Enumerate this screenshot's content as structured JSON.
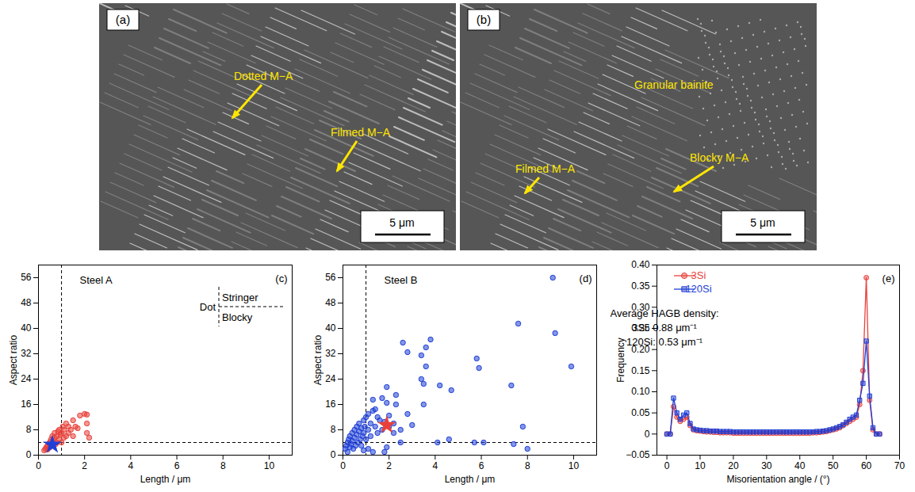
{
  "images": [
    {
      "label": "(a)",
      "annotations": [
        "Dotted M−A",
        "Filmed M−A"
      ],
      "scale_bar": "5 μm"
    },
    {
      "label": "(b)",
      "annotations": [
        "Granular bainite",
        "Filmed M−A",
        "Blocky M−A"
      ],
      "scale_bar": "5 μm"
    }
  ],
  "chart_data": [
    {
      "panel": "(c)",
      "type": "scatter",
      "title": "Steel A",
      "x_label": "Length / μm",
      "y_label": "Aspect ratio",
      "xlim": [
        0,
        11
      ],
      "ylim": [
        0,
        60
      ],
      "xticks": [
        0,
        2,
        4,
        6,
        8,
        10
      ],
      "yticks": [
        0,
        8,
        16,
        24,
        32,
        40,
        48,
        56
      ],
      "points": {
        "color": "#e8413a",
        "marker": "circle",
        "x": [
          0.25,
          0.3,
          0.35,
          0.4,
          0.4,
          0.45,
          0.5,
          0.5,
          0.55,
          0.6,
          0.6,
          0.65,
          0.7,
          0.7,
          0.75,
          0.8,
          0.8,
          0.85,
          0.9,
          0.9,
          0.95,
          1.0,
          1.0,
          1.05,
          1.1,
          1.1,
          1.2,
          1.2,
          1.3,
          1.3,
          1.4,
          1.5,
          1.5,
          1.6,
          1.7,
          1.8,
          2.0,
          2.1,
          2.1,
          2.2,
          2.1
        ],
        "y": [
          1.5,
          2,
          2.6,
          3,
          1.8,
          3.6,
          4.2,
          2.5,
          5,
          3,
          6,
          4.5,
          5.5,
          7,
          3.5,
          6,
          4,
          7.5,
          5,
          8,
          6.5,
          4,
          7,
          9,
          5.5,
          8,
          6,
          10,
          7,
          9,
          8,
          11,
          6,
          9,
          8.5,
          12.5,
          13,
          10,
          7,
          5.5,
          12.8
        ]
      },
      "mean": {
        "x": 0.6,
        "y": 3.3,
        "color": "#1f3fd6",
        "marker": "star"
      },
      "thresholds": {
        "length": 1,
        "aspect_ratio": 4
      },
      "inset_labels": [
        "Dot",
        "Stringer",
        "Blocky"
      ]
    },
    {
      "panel": "(d)",
      "type": "scatter",
      "title": "Steel B",
      "x_label": "Length / μm",
      "y_label": "Aspect ratio",
      "xlim": [
        0,
        11
      ],
      "ylim": [
        0,
        60
      ],
      "xticks": [
        0,
        2,
        4,
        6,
        8,
        10
      ],
      "yticks": [
        0,
        8,
        16,
        24,
        32,
        40,
        48,
        56
      ],
      "points": {
        "color": "#1f3fd6",
        "marker": "circle",
        "x": [
          9.1,
          7.6,
          9.2,
          3.8,
          2.6,
          3.6,
          3.4,
          5.8,
          5.9,
          2.8,
          3.6,
          9.9,
          3.4,
          3.5,
          4.2,
          4.7,
          7.3,
          1.9,
          2.3,
          1.7,
          1.3,
          1.9,
          3.5,
          2.3,
          1.3,
          2.0,
          1.5,
          1.1,
          2.8,
          3.0,
          7.8,
          2.2,
          4.6,
          5.7,
          6.1,
          7.4,
          8.0,
          2.5,
          1.3,
          1.1,
          0.9,
          1.8,
          0.1,
          0.15,
          0.2,
          0.2,
          0.25,
          0.3,
          0.3,
          0.35,
          0.4,
          0.4,
          0.45,
          0.5,
          0.5,
          0.55,
          0.6,
          0.6,
          0.65,
          0.7,
          0.7,
          0.75,
          0.8,
          0.8,
          0.85,
          0.9,
          0.9,
          0.95,
          1.0,
          1.0,
          1.1,
          1.2,
          1.2,
          1.4,
          1.5,
          1.6,
          1.7,
          1.8,
          2.0,
          2.2,
          2.5,
          1.4,
          4.1,
          1.9
        ],
        "y": [
          56,
          41.5,
          38.5,
          36.5,
          35.5,
          34,
          31.5,
          30.5,
          27.5,
          32.5,
          28,
          28,
          24,
          22.5,
          22,
          20.5,
          22,
          21.5,
          19,
          18,
          17.5,
          16.5,
          16,
          16,
          14,
          12.5,
          12,
          13,
          13,
          9.5,
          9,
          7,
          5,
          4,
          4,
          3.5,
          2,
          4,
          1,
          2,
          1.5,
          1,
          2,
          3,
          4,
          1,
          5,
          2.5,
          6,
          3.5,
          7,
          4.5,
          2,
          8,
          5.5,
          3,
          9,
          6.5,
          4,
          7.5,
          10,
          5,
          8.5,
          3,
          6,
          11,
          7,
          9,
          5,
          12,
          8,
          10,
          6,
          9,
          7,
          11,
          8,
          10.5,
          9,
          10,
          8,
          14.5,
          4,
          2.5
        ]
      },
      "mean": {
        "x": 1.9,
        "y": 9.5,
        "color": "#e8413a",
        "marker": "star"
      },
      "thresholds": {
        "length": 1,
        "aspect_ratio": 4
      }
    },
    {
      "panel": "(e)",
      "type": "line",
      "x_label": "Misorientation angle / (°)",
      "y_label": "Frequency",
      "xlim": [
        -3,
        70
      ],
      "ylim": [
        -0.05,
        0.4
      ],
      "xticks": [
        0,
        10,
        20,
        30,
        40,
        50,
        60,
        70
      ],
      "yticks": [
        {
          "value": -0.05,
          "label": "−0.05"
        },
        0,
        0.05,
        {
          "value": 0.1,
          "label": "0.10"
        },
        0.15,
        {
          "value": 0.2,
          "label": "0.20"
        },
        0.25,
        {
          "value": 0.3,
          "label": "0.30"
        },
        0.35,
        {
          "value": 0.4,
          "label": "0.40"
        }
      ],
      "legend": "top-left",
      "annotations": [
        "Average HAGB density:",
        "3Si: 0.88 μm⁻¹",
        "120Si: 0.53 μm⁻¹"
      ],
      "x": [
        0,
        1,
        2,
        3,
        4,
        5,
        6,
        7,
        8,
        9,
        10,
        11,
        12,
        13,
        14,
        15,
        16,
        17,
        18,
        19,
        20,
        21,
        22,
        23,
        24,
        25,
        26,
        27,
        28,
        29,
        30,
        31,
        32,
        33,
        34,
        35,
        36,
        37,
        38,
        39,
        40,
        41,
        42,
        43,
        44,
        45,
        46,
        47,
        48,
        49,
        50,
        51,
        52,
        53,
        54,
        55,
        56,
        57,
        58,
        59,
        60,
        61,
        62,
        63,
        64
      ],
      "series": [
        {
          "name": "3Si",
          "color": "#e8413a",
          "marker": "circle",
          "values": [
            0,
            0,
            0.065,
            0.04,
            0.03,
            0.035,
            0.04,
            0.02,
            0.01,
            0.008,
            0.007,
            0.006,
            0.005,
            0.005,
            0.004,
            0.004,
            0.003,
            0.003,
            0.003,
            0.003,
            0.002,
            0.002,
            0.002,
            0.002,
            0.002,
            0.002,
            0.002,
            0.002,
            0.002,
            0.002,
            0.002,
            0.002,
            0.002,
            0.002,
            0.002,
            0.002,
            0.002,
            0.002,
            0.002,
            0.002,
            0.002,
            0.002,
            0.002,
            0.002,
            0.003,
            0.003,
            0.004,
            0.005,
            0.006,
            0.008,
            0.01,
            0.012,
            0.015,
            0.02,
            0.025,
            0.03,
            0.035,
            0.04,
            0.07,
            0.15,
            0.37,
            0.08,
            0.01,
            0,
            0
          ]
        },
        {
          "name": "120Si",
          "color": "#1f3fd6",
          "marker": "square",
          "values": [
            0,
            0,
            0.085,
            0.05,
            0.035,
            0.045,
            0.05,
            0.025,
            0.012,
            0.01,
            0.009,
            0.008,
            0.008,
            0.007,
            0.007,
            0.007,
            0.006,
            0.006,
            0.006,
            0.006,
            0.005,
            0.005,
            0.005,
            0.005,
            0.005,
            0.005,
            0.005,
            0.005,
            0.005,
            0.005,
            0.005,
            0.005,
            0.005,
            0.005,
            0.005,
            0.005,
            0.005,
            0.005,
            0.005,
            0.005,
            0.005,
            0.005,
            0.005,
            0.005,
            0.005,
            0.006,
            0.006,
            0.007,
            0.008,
            0.01,
            0.012,
            0.015,
            0.018,
            0.022,
            0.028,
            0.035,
            0.04,
            0.045,
            0.08,
            0.12,
            0.22,
            0.09,
            0.015,
            0,
            0
          ]
        }
      ]
    }
  ]
}
